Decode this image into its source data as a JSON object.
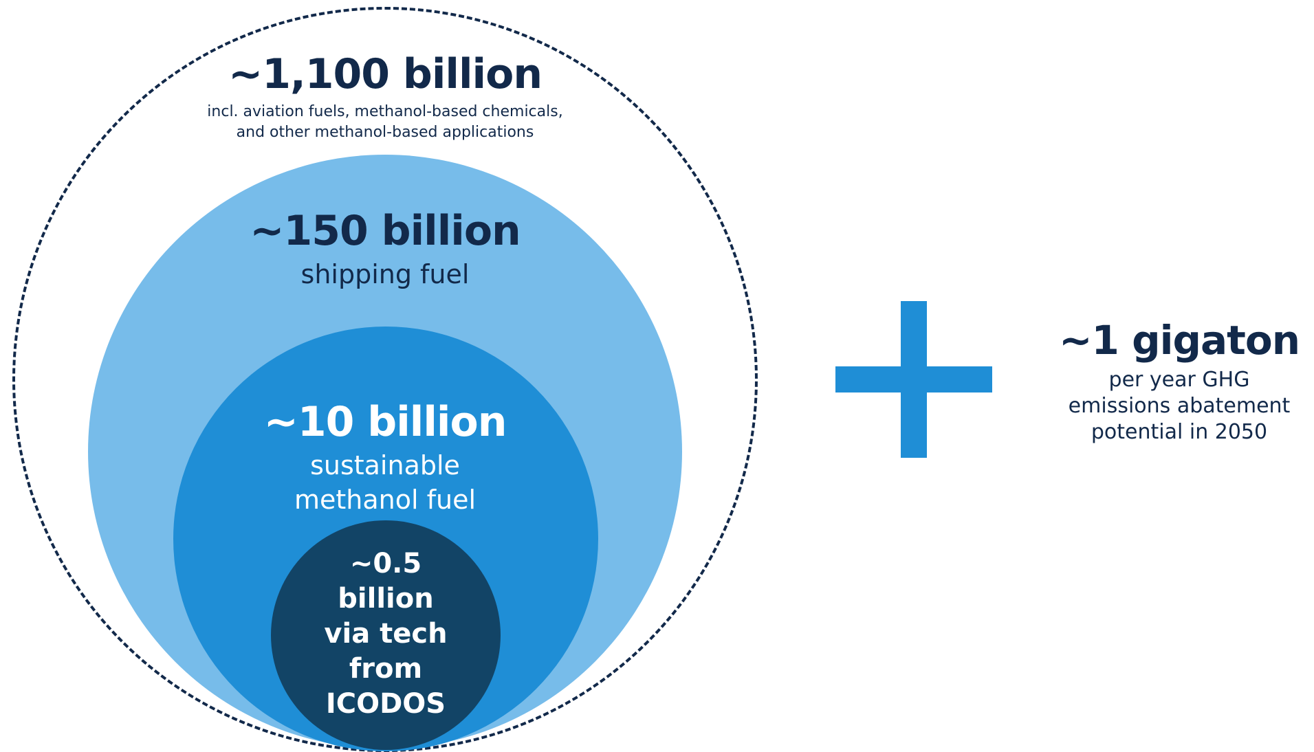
{
  "diagram": {
    "outer": {
      "value": "~1,100 billion",
      "description_lines": [
        "incl. aviation fuels, methanol-based chemicals,",
        "and other methanol-based applications"
      ]
    },
    "shipping": {
      "value": "~150 billion",
      "description": "shipping fuel"
    },
    "methanol": {
      "value": "~10 billion",
      "description_lines": [
        "sustainable",
        "methanol fuel"
      ]
    },
    "icodos": {
      "lines": [
        "~0.5",
        "billion",
        "via tech",
        "from",
        "ICODOS"
      ]
    },
    "gigaton": {
      "value": "~1 gigaton",
      "description_lines": [
        "per year GHG",
        "emissions abatement",
        "potential in 2050"
      ]
    }
  },
  "colors": {
    "navy": "#12294a",
    "light_blue": "#77bcea",
    "mid_blue": "#1f8ed6",
    "dark_blue": "#124466",
    "plus_blue": "#1f8ed6"
  },
  "icons": {
    "plus": "plus-icon"
  }
}
